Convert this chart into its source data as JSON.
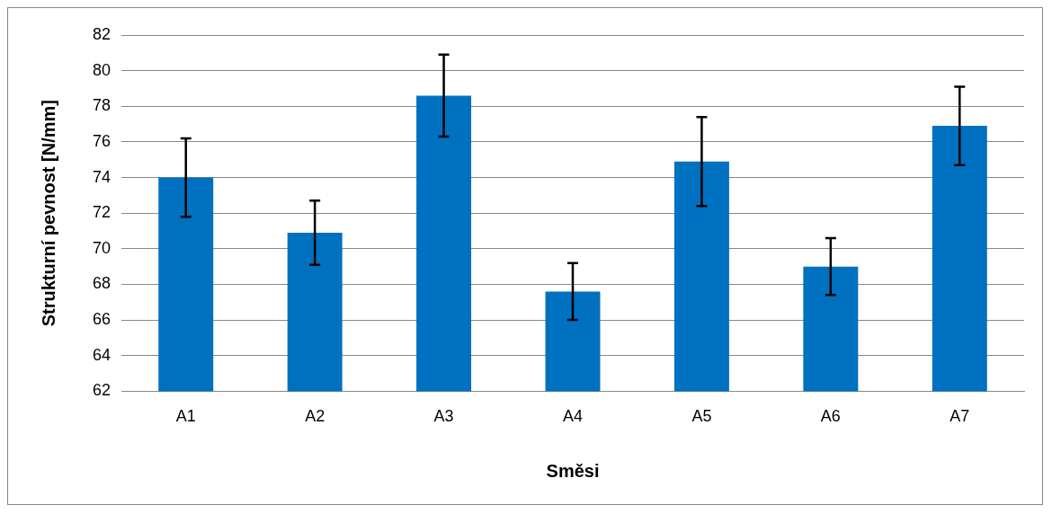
{
  "chart_data": {
    "type": "bar",
    "xlabel": "Směsi",
    "ylabel": "Strukturní pevnost [N/mm]",
    "categories": [
      "A1",
      "A2",
      "A3",
      "A4",
      "A5",
      "A6",
      "A7"
    ],
    "values": [
      74.0,
      70.9,
      78.6,
      67.6,
      74.9,
      69.0,
      76.9
    ],
    "errors": [
      2.2,
      1.8,
      2.3,
      1.6,
      2.5,
      1.6,
      2.2
    ],
    "color": "#0070c0",
    "ylim": [
      62,
      82
    ],
    "yticks": [
      62,
      64,
      66,
      68,
      70,
      72,
      74,
      76,
      78,
      80,
      82
    ],
    "grid": "y"
  }
}
